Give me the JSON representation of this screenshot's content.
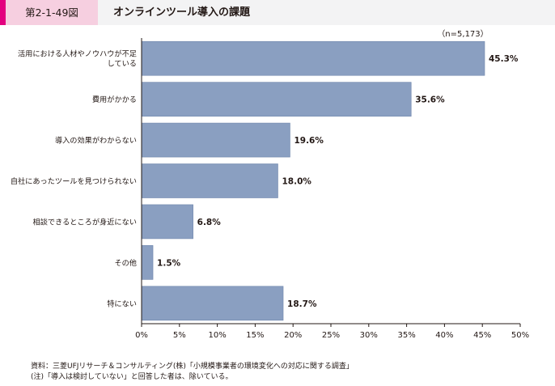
{
  "header": {
    "figure_number": "第2-1-49図",
    "title": "オンラインツール導入の課題"
  },
  "chart_data": {
    "type": "bar",
    "orientation": "horizontal",
    "sample_note": "（n=5,173）",
    "categories": [
      [
        "活用における人材やノウハウが不足",
        "している"
      ],
      [
        "費用がかかる"
      ],
      [
        "導入の効果がわからない"
      ],
      [
        "自社にあったツールを見つけられない"
      ],
      [
        "相談できるところが身近にない"
      ],
      [
        "その他"
      ],
      [
        "特にない"
      ]
    ],
    "values": [
      45.3,
      35.6,
      19.6,
      18.0,
      6.8,
      1.5,
      18.7
    ],
    "data_labels": [
      "45.3%",
      "35.6%",
      "19.6%",
      "18.0%",
      "6.8%",
      "1.5%",
      "18.7%"
    ],
    "xlim": [
      0,
      50
    ],
    "ticks": [
      0,
      5,
      10,
      15,
      20,
      25,
      30,
      35,
      40,
      45,
      50
    ],
    "tick_labels": [
      "0%",
      "5%",
      "10%",
      "15%",
      "20%",
      "25%",
      "30%",
      "35%",
      "40%",
      "45%",
      "50%"
    ],
    "xlabel": "",
    "ylabel": "",
    "grid": false,
    "bar_color": "#8a9fc1",
    "bar_edge_color": "#6e85ab"
  },
  "footnotes": {
    "source": "資料：三菱UFJリサーチ＆コンサルティング(株)「小規模事業者の環境変化への対応に関する調査」",
    "note": "(注)「導入は検討していない」と回答した者は、除いている。"
  }
}
